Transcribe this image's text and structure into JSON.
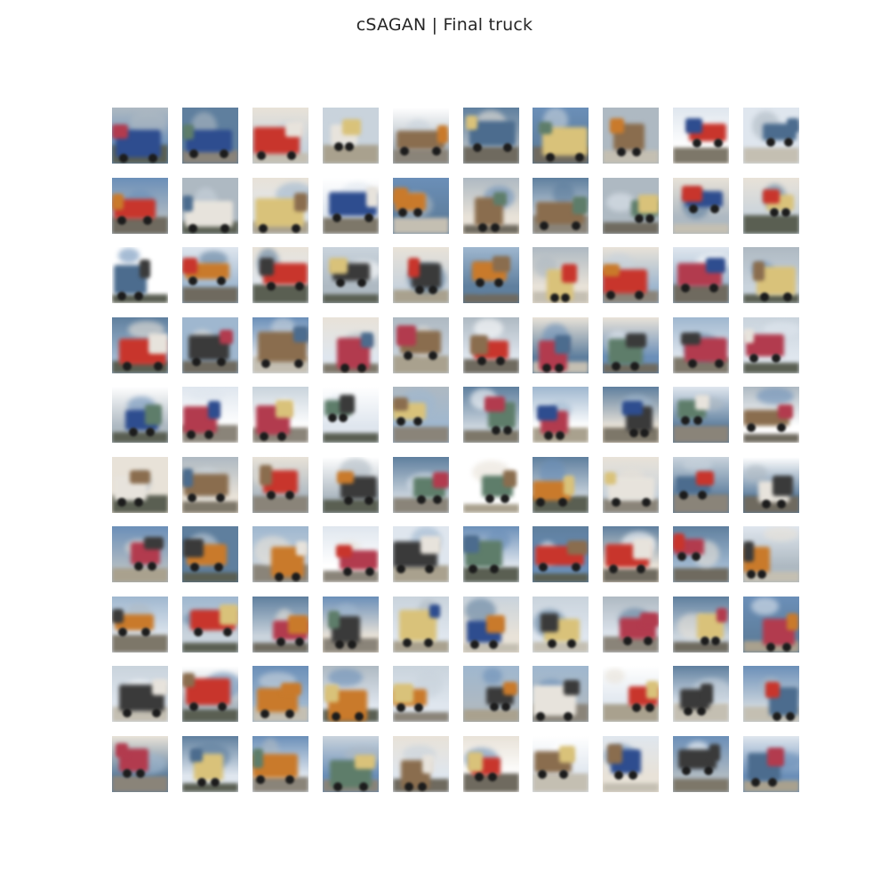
{
  "figure": {
    "title": "cSAGAN | Final truck"
  },
  "grid": {
    "rows": 10,
    "cols": 10,
    "sample_class": "truck",
    "palette": {
      "sky": [
        "#dfe6ee",
        "#9fb7cf",
        "#6b8fb8",
        "#c9d3dc",
        "#ffffff",
        "#aeb9c2",
        "#5f7f9e",
        "#e8e2d8"
      ],
      "truck": [
        "#c8352c",
        "#2e4d8f",
        "#e7e3dc",
        "#c97a2b",
        "#3a3a3a",
        "#5e7d6a",
        "#8a6d4e",
        "#b23b4e",
        "#d9c27a",
        "#4c6c8e"
      ],
      "ground": [
        "#8a8479",
        "#6f6a5f",
        "#a9a18e",
        "#5a5f52",
        "#c4bfb2",
        "#7d7769"
      ]
    }
  }
}
